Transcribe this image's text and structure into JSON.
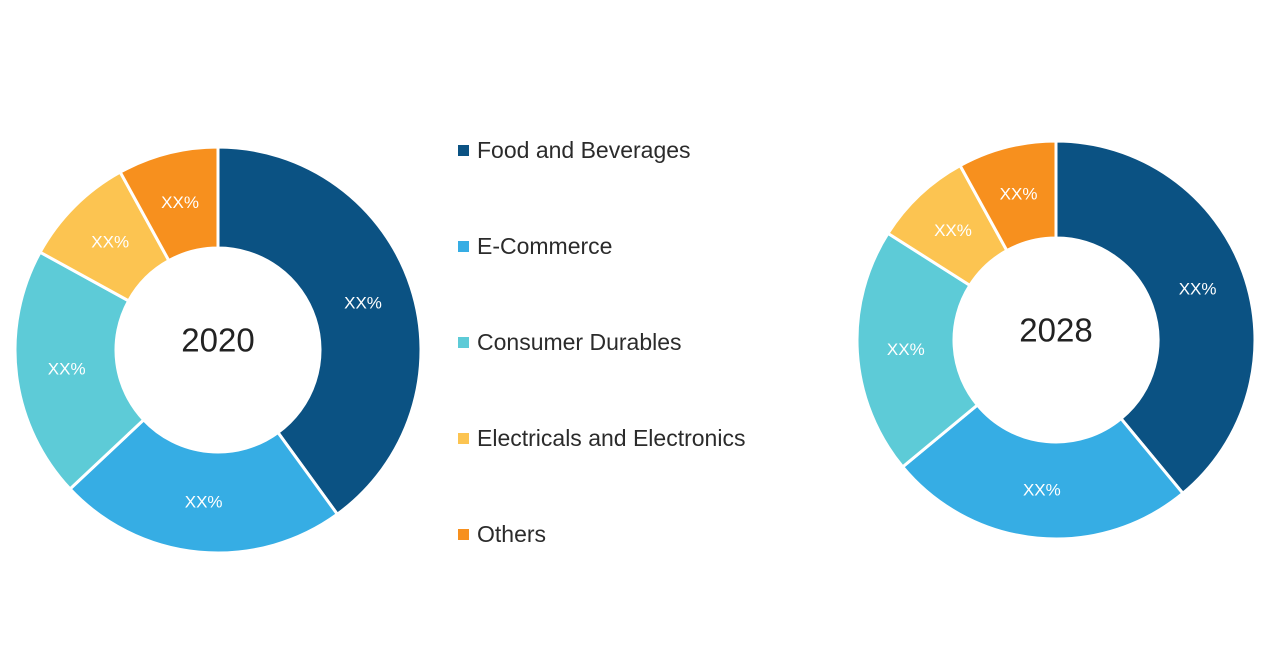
{
  "chart_data": [
    {
      "type": "pie",
      "center_label": "2020",
      "categories": [
        "Food and Beverages",
        "E-Commerce",
        "Consumer Durables",
        "Electricals and Electronics",
        "Others"
      ],
      "values": [
        40,
        23,
        20,
        9,
        8
      ],
      "data_labels": [
        "XX%",
        "XX%",
        "XX%",
        "XX%",
        "XX%"
      ]
    },
    {
      "type": "pie",
      "center_label": "2028",
      "categories": [
        "Food and Beverages",
        "E-Commerce",
        "Consumer Durables",
        "Electricals and Electronics",
        "Others"
      ],
      "values": [
        39,
        25,
        20,
        8,
        8
      ],
      "data_labels": [
        "XX%",
        "XX%",
        "XX%",
        "XX%",
        "XX%"
      ]
    }
  ],
  "legend": {
    "placement": "center",
    "items": [
      {
        "label": "Food and Beverages",
        "color": "#0b5283"
      },
      {
        "label": "E-Commerce",
        "color": "#36ade4"
      },
      {
        "label": "Consumer Durables",
        "color": "#5dcbd7"
      },
      {
        "label": "Electricals and Electronics",
        "color": "#fcc451"
      },
      {
        "label": "Others",
        "color": "#f7901e"
      }
    ]
  }
}
